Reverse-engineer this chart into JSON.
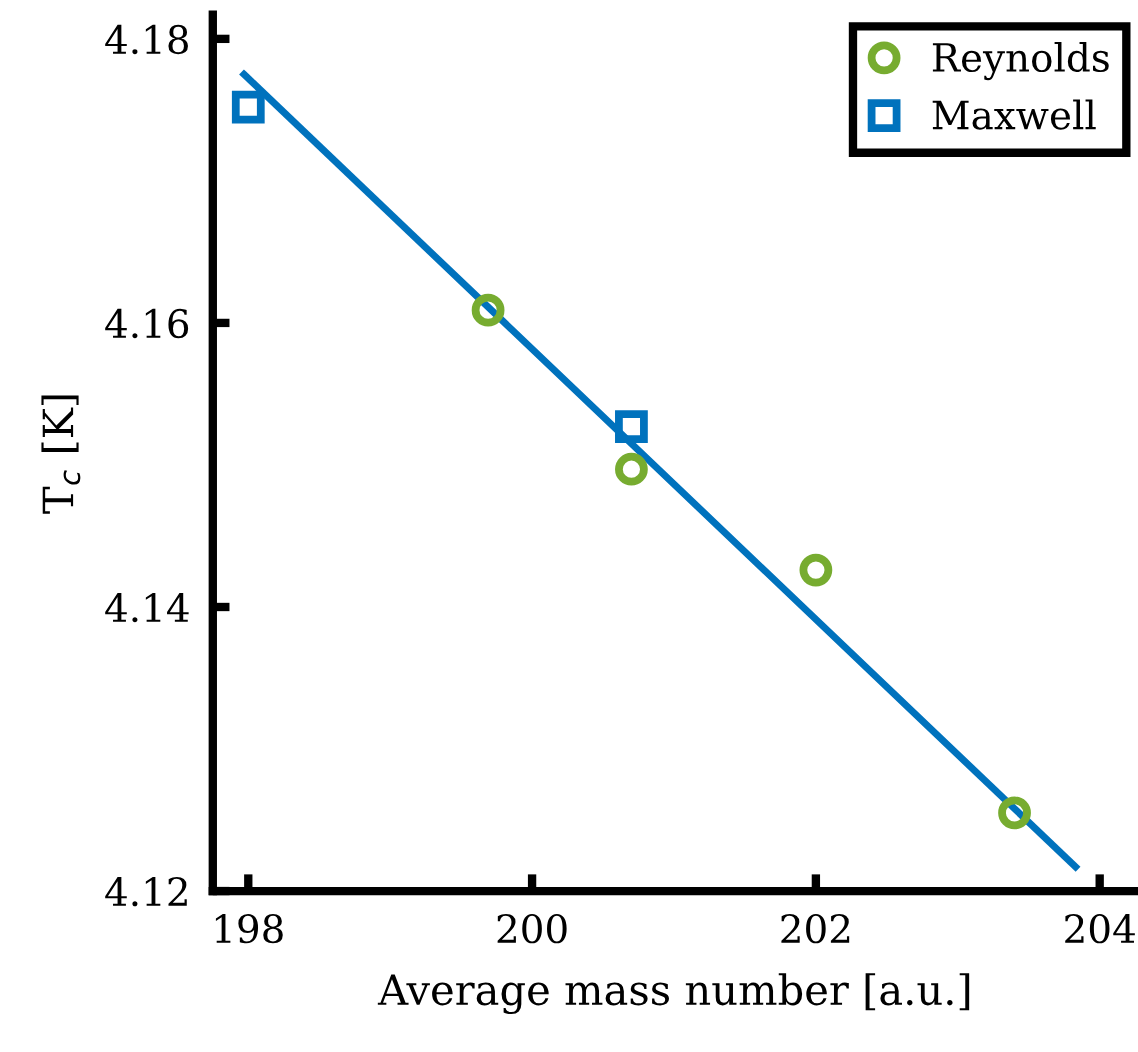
{
  "chart_data": {
    "type": "scatter",
    "xlabel": "Average mass number [a.u.]",
    "ylabel": "T$_{c}$ [K]",
    "xlim": [
      197.75,
      204.27
    ],
    "ylim": [
      4.12,
      4.1817
    ],
    "xticks": [
      198,
      200,
      202,
      204
    ],
    "yticks": [
      4.12,
      4.14,
      4.16,
      4.18
    ],
    "grid": false,
    "legend": "top right",
    "series": [
      {
        "type": "line",
        "color": "#0072bd",
        "x": [
          197.97,
          203.83
        ],
        "values": [
          4.1775,
          4.1217
        ],
        "marker": "none",
        "line_style": "solid"
      },
      {
        "name": "Reynolds",
        "color": "#77ac30",
        "marker": "circle",
        "x": [
          199.69,
          200.7,
          202.0,
          203.4
        ],
        "values": [
          4.1609,
          4.1497,
          4.1426,
          4.1255
        ]
      },
      {
        "name": "Maxwell",
        "color": "#0072bd",
        "marker": "square",
        "x": [
          198.0,
          200.7
        ],
        "values": [
          4.1752,
          4.1527
        ]
      }
    ]
  }
}
